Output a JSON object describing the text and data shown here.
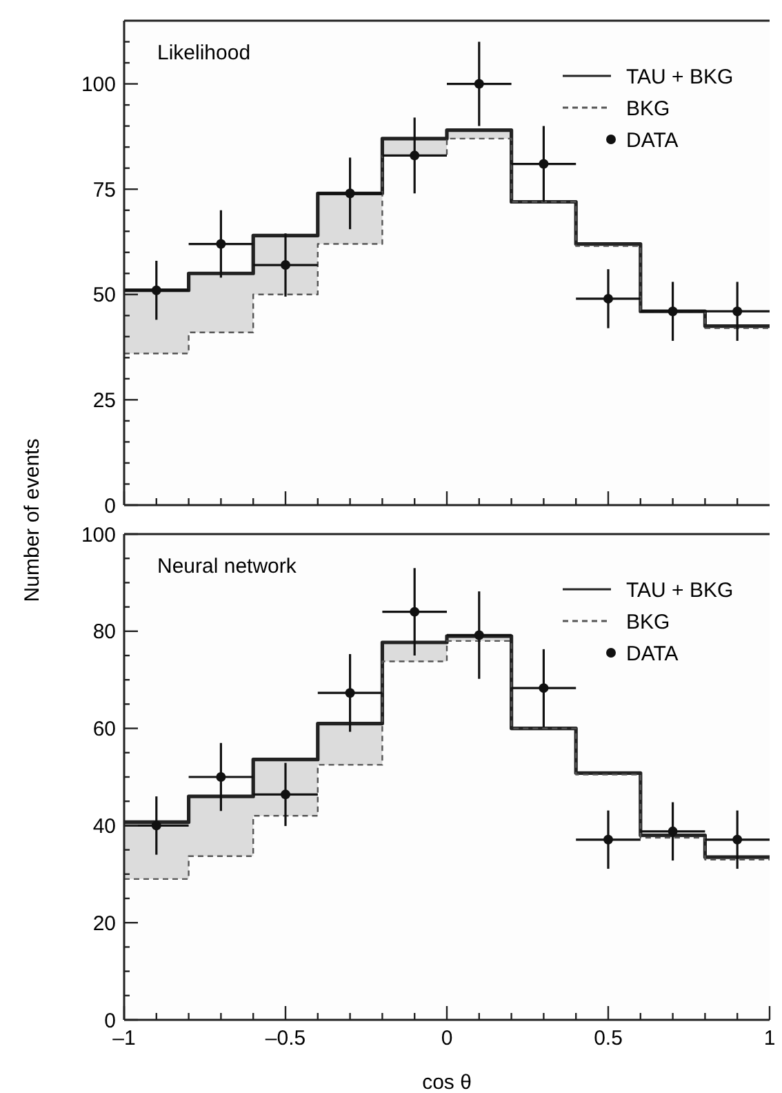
{
  "chart_data": [
    {
      "type": "step",
      "title": "Likelihood",
      "ylabel": "Number of events",
      "x": [
        -1,
        -0.8,
        -0.6,
        -0.4,
        -0.2,
        0,
        0.2,
        0.4,
        0.6,
        0.8,
        1
      ],
      "xlim": [
        -1,
        1
      ],
      "xticks": [
        {
          "value": -1,
          "label": null
        },
        {
          "value": -0.9,
          "label": null
        },
        {
          "value": -0.8,
          "label": null
        },
        {
          "value": -0.7,
          "label": null
        },
        {
          "value": -0.6,
          "label": null
        },
        {
          "value": -0.5,
          "label": null
        },
        {
          "value": -0.4,
          "label": null
        },
        {
          "value": -0.3,
          "label": null
        },
        {
          "value": -0.2,
          "label": null
        },
        {
          "value": -0.1,
          "label": null
        },
        {
          "value": 0,
          "label": null
        },
        {
          "value": 0.1,
          "label": null
        },
        {
          "value": 0.2,
          "label": null
        },
        {
          "value": 0.3,
          "label": null
        },
        {
          "value": 0.4,
          "label": null
        },
        {
          "value": 0.5,
          "label": null
        },
        {
          "value": 0.6,
          "label": null
        },
        {
          "value": 0.7,
          "label": null
        },
        {
          "value": 0.8,
          "label": null
        },
        {
          "value": 0.9,
          "label": null
        }
      ],
      "ylim": [
        0,
        115
      ],
      "yticks": [
        0,
        {
          "value": 5,
          "label": null
        },
        {
          "value": 10,
          "label": null
        },
        {
          "value": 15,
          "label": null
        },
        {
          "value": 20,
          "label": null
        },
        25,
        {
          "value": 30,
          "label": null
        },
        {
          "value": 35,
          "label": null
        },
        {
          "value": 40,
          "label": null
        },
        {
          "value": 45,
          "label": null
        },
        50,
        {
          "value": 55,
          "label": null
        },
        {
          "value": 60,
          "label": null
        },
        {
          "value": 65,
          "label": null
        },
        {
          "value": 70,
          "label": null
        },
        75,
        {
          "value": 80,
          "label": null
        },
        {
          "value": 85,
          "label": null
        },
        {
          "value": 90,
          "label": null
        },
        {
          "value": 95,
          "label": null
        },
        100,
        {
          "value": 105,
          "label": null
        },
        {
          "value": 110,
          "label": null
        }
      ],
      "tick_labels": "y",
      "legend": "top right",
      "grid": false,
      "series": [
        {
          "name": "TAU + BKG",
          "color": "#222222",
          "line_style": "solid",
          "values": [
            51,
            55,
            64,
            74,
            87,
            89,
            72,
            62,
            46,
            42.5,
            42.5
          ]
        },
        {
          "name": "BKG",
          "color": "#555555",
          "line_style": "dashed",
          "values": [
            36,
            41,
            50,
            62,
            83,
            87,
            72,
            61.5,
            46,
            42,
            42
          ]
        },
        {
          "name": "DATA",
          "type": "scatter",
          "color": "#111111",
          "marker": "circle",
          "x": [
            -0.9,
            -0.7,
            -0.5,
            -0.3,
            -0.1,
            0.1,
            0.3,
            0.5,
            0.7,
            0.9
          ],
          "values": [
            51,
            62,
            57,
            74,
            83,
            100,
            81,
            49,
            46,
            46
          ],
          "errors": [
            7,
            8,
            7.5,
            8.5,
            9,
            10,
            9,
            7,
            7,
            7
          ],
          "xerrors": [
            0.1,
            0.1,
            0.1,
            0.1,
            0.1,
            0.1,
            0.1,
            0.1,
            0.1,
            0.1
          ]
        }
      ]
    },
    {
      "type": "step",
      "title": "Neural network",
      "xlabel": "cos θ",
      "x": [
        -1,
        -0.8,
        -0.6,
        -0.4,
        -0.2,
        0,
        0.2,
        0.4,
        0.6,
        0.8,
        1
      ],
      "xlim": [
        -1,
        1
      ],
      "xticks": [
        {
          "value": -1,
          "label": "–1"
        },
        {
          "value": -0.9,
          "label": null
        },
        {
          "value": -0.8,
          "label": null
        },
        {
          "value": -0.7,
          "label": null
        },
        {
          "value": -0.6,
          "label": null
        },
        {
          "value": -0.5,
          "label": "–0.5"
        },
        {
          "value": -0.4,
          "label": null
        },
        {
          "value": -0.3,
          "label": null
        },
        {
          "value": -0.2,
          "label": null
        },
        {
          "value": -0.1,
          "label": null
        },
        0,
        {
          "value": 0.1,
          "label": null
        },
        {
          "value": 0.2,
          "label": null
        },
        {
          "value": 0.3,
          "label": null
        },
        {
          "value": 0.4,
          "label": null
        },
        0.5,
        {
          "value": 0.6,
          "label": null
        },
        {
          "value": 0.7,
          "label": null
        },
        {
          "value": 0.8,
          "label": null
        },
        {
          "value": 0.9,
          "label": null
        },
        1
      ],
      "ylim": [
        0,
        100
      ],
      "yticks": [
        0,
        {
          "value": 5,
          "label": null
        },
        {
          "value": 10,
          "label": null
        },
        {
          "value": 15,
          "label": null
        },
        20,
        {
          "value": 25,
          "label": null
        },
        {
          "value": 30,
          "label": null
        },
        {
          "value": 35,
          "label": null
        },
        40,
        {
          "value": 45,
          "label": null
        },
        {
          "value": 50,
          "label": null
        },
        {
          "value": 55,
          "label": null
        },
        60,
        {
          "value": 65,
          "label": null
        },
        {
          "value": 70,
          "label": null
        },
        {
          "value": 75,
          "label": null
        },
        80,
        {
          "value": 85,
          "label": null
        },
        {
          "value": 90,
          "label": null
        },
        {
          "value": 95,
          "label": null
        },
        100
      ],
      "legend": "top right",
      "grid": false,
      "series": [
        {
          "name": "TAU + BKG",
          "color": "#222222",
          "line_style": "solid",
          "values": [
            40.7,
            46,
            53.6,
            61,
            77.7,
            79,
            60,
            50.8,
            38,
            33.5,
            33.5
          ]
        },
        {
          "name": "BKG",
          "color": "#555555",
          "line_style": "dashed",
          "values": [
            29,
            33.7,
            42,
            52.5,
            73.8,
            78,
            60,
            50.5,
            37.5,
            33,
            33
          ]
        },
        {
          "name": "DATA",
          "type": "scatter",
          "color": "#111111",
          "marker": "circle",
          "x": [
            -0.9,
            -0.7,
            -0.5,
            -0.3,
            -0.1,
            0.1,
            0.3,
            0.5,
            0.7,
            0.9
          ],
          "values": [
            40,
            50,
            46.4,
            67.3,
            84,
            79.2,
            68.3,
            37.1,
            38.8,
            37.1
          ],
          "errors": [
            6,
            7,
            6.5,
            8,
            9,
            9,
            8,
            6,
            6,
            6
          ],
          "xerrors": [
            0.1,
            0.1,
            0.1,
            0.1,
            0.1,
            0.1,
            0.1,
            0.1,
            0.1,
            0.1
          ]
        }
      ]
    }
  ]
}
